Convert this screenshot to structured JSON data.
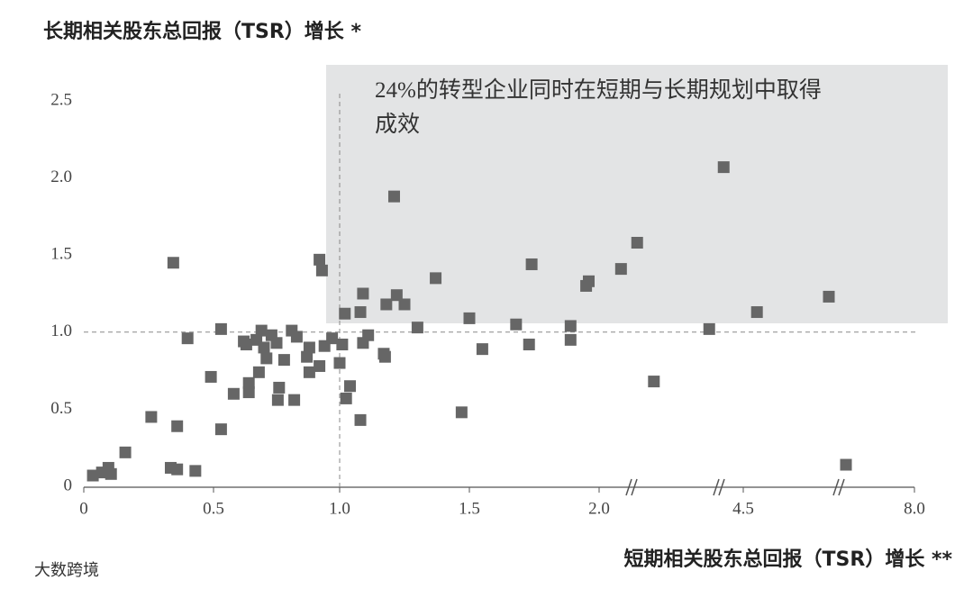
{
  "chart_data": {
    "type": "scatter",
    "title": "长期相关股东总回报（TSR）增长 *",
    "x_label": "短期相关股东总回报（TSR）增长 **",
    "annotation": "24%的转型企业同时在短期与长期规划中取得成效",
    "watermark": "大数跨境",
    "color": "#666666",
    "x": [
      0.035,
      0.07,
      0.095,
      0.105,
      0.16,
      0.26,
      0.345,
      0.335,
      0.36,
      0.36,
      0.43,
      0.4,
      0.49,
      0.53,
      0.53,
      0.58,
      0.62,
      0.63,
      0.64,
      0.64,
      0.67,
      0.68,
      0.69,
      0.7,
      0.71,
      0.73,
      0.75,
      0.76,
      0.755,
      0.78,
      0.81,
      0.83,
      0.82,
      0.87,
      0.88,
      0.88,
      0.92,
      0.92,
      0.93,
      0.94,
      0.97,
      1.0,
      1.01,
      1.02,
      1.025,
      1.04,
      1.08,
      1.09,
      1.08,
      1.09,
      1.11,
      1.17,
      1.18,
      1.175,
      1.21,
      1.22,
      1.25,
      1.3,
      1.37,
      1.47,
      1.5,
      1.55,
      1.68,
      1.73,
      1.74,
      1.89,
      1.89,
      1.95,
      1.96,
      2.38,
      2.66,
      2.95,
      3.91,
      4.16,
      4.78,
      6.25,
      6.6
    ],
    "values": [
      0.07,
      0.09,
      0.12,
      0.08,
      0.22,
      0.45,
      1.45,
      0.12,
      0.11,
      0.39,
      0.1,
      0.96,
      0.71,
      1.02,
      0.37,
      0.6,
      0.94,
      0.92,
      0.67,
      0.61,
      0.95,
      0.74,
      1.01,
      0.9,
      0.83,
      0.98,
      0.93,
      0.64,
      0.56,
      0.82,
      1.01,
      0.97,
      0.56,
      0.84,
      0.9,
      0.74,
      0.78,
      1.47,
      1.4,
      0.91,
      0.96,
      0.8,
      0.92,
      1.12,
      0.57,
      0.65,
      1.13,
      1.25,
      0.43,
      0.93,
      0.98,
      0.86,
      1.18,
      0.84,
      1.88,
      1.24,
      1.18,
      1.03,
      1.35,
      0.48,
      1.09,
      0.89,
      1.05,
      0.92,
      1.44,
      1.04,
      0.95,
      1.3,
      1.33,
      1.41,
      1.58,
      0.68,
      1.02,
      2.07,
      1.13,
      1.23,
      0.14
    ],
    "xticks": [
      0,
      0.5,
      {
        "value": 1,
        "label": "1.0"
      },
      1.5,
      {
        "value": 2,
        "label": "2.0"
      },
      4.5,
      {
        "value": 8,
        "label": "8.0"
      }
    ],
    "ylim": [
      0,
      2.5
    ],
    "yticks": [
      0,
      0.5,
      {
        "value": 1,
        "label": "1.0"
      },
      1.5,
      {
        "value": 2,
        "label": "2.0"
      },
      2.5
    ],
    "hlines": [
      1
    ],
    "vlines": [
      1
    ]
  }
}
